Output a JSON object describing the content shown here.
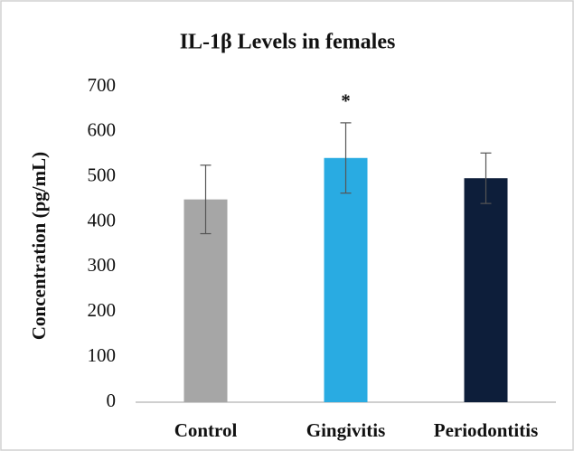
{
  "chart_data": {
    "type": "bar",
    "title": "IL-1β Levels in females",
    "y_label": "Concentration (pg/mL)",
    "categories": [
      "Control",
      "Gingivitis",
      "Periodontitis"
    ],
    "values": [
      450,
      542,
      497
    ],
    "errors": [
      76,
      78,
      56
    ],
    "colors": [
      "#a6a6a6",
      "#29abe2",
      "#0d1e3a"
    ],
    "annotations": [
      {
        "category": "Gingivitis",
        "text": "*"
      }
    ],
    "ylim": [
      0,
      700
    ],
    "yticks": [
      0,
      100,
      200,
      300,
      400,
      500,
      600,
      700
    ],
    "grid": false
  }
}
